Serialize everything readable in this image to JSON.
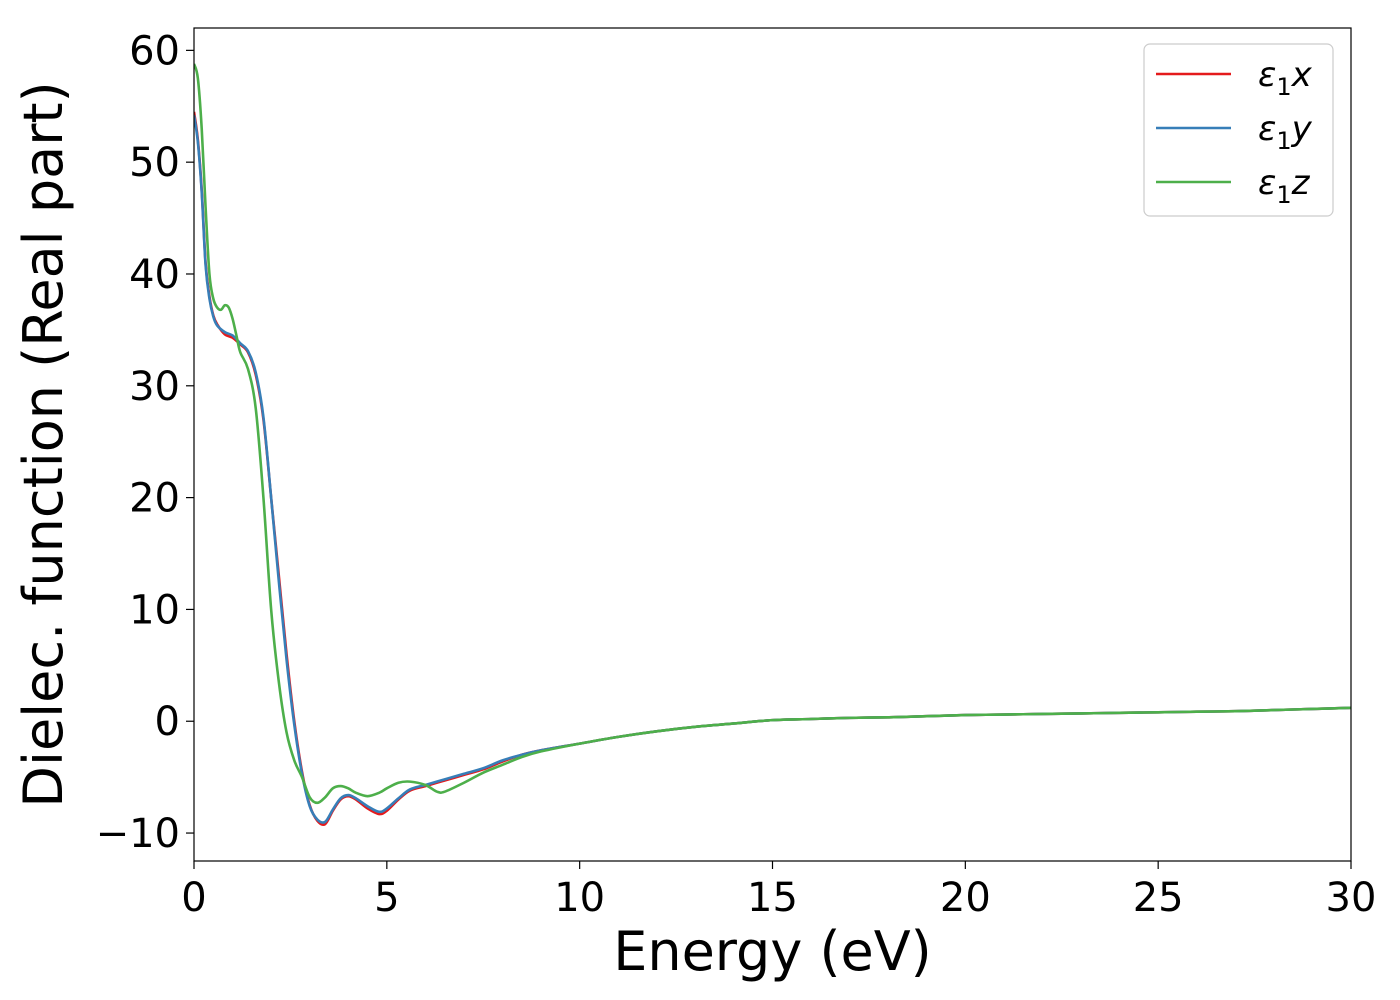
{
  "chart_data": {
    "type": "line",
    "title": "",
    "xlabel": "Energy (eV)",
    "ylabel": "Dielec. function (Real part)",
    "xlim": [
      0,
      30
    ],
    "ylim": [
      -12.5,
      62
    ],
    "xticks": [
      0,
      5,
      10,
      15,
      20,
      25,
      30
    ],
    "xtick_labels": [
      "0",
      "5",
      "10",
      "15",
      "20",
      "25",
      "30"
    ],
    "yticks": [
      -10,
      0,
      10,
      20,
      30,
      40,
      50,
      60
    ],
    "ytick_labels": [
      "−10",
      "0",
      "10",
      "20",
      "30",
      "40",
      "50",
      "60"
    ],
    "grid": false,
    "legend_position": "top-right",
    "series": [
      {
        "name": "ε₁x",
        "legend_main": "ε",
        "legend_sub": "1",
        "legend_var": "x",
        "color": "#e41a1c",
        "x": [
          0,
          0.1,
          0.2,
          0.3,
          0.4,
          0.5,
          0.6,
          0.8,
          1.0,
          1.2,
          1.4,
          1.6,
          1.8,
          2.0,
          2.2,
          2.4,
          2.6,
          2.8,
          3.0,
          3.2,
          3.4,
          3.6,
          3.8,
          4.0,
          4.2,
          4.5,
          4.8,
          5.0,
          5.3,
          5.6,
          6.0,
          6.5,
          7.0,
          7.5,
          8.0,
          8.5,
          9.0,
          10.0,
          11.0,
          12.0,
          13.0,
          14.0,
          15.0,
          16.0,
          17.0,
          18.0,
          19.0,
          20.0,
          21.0,
          22.0,
          23.0,
          24.0,
          25.0,
          26.0,
          27.0,
          28.0,
          29.0,
          30.0
        ],
        "y": [
          54.5,
          52.0,
          47.5,
          41.0,
          38.0,
          36.3,
          35.5,
          34.6,
          34.3,
          33.7,
          33.0,
          31.0,
          27.0,
          20.0,
          13.0,
          6.0,
          0.0,
          -4.5,
          -7.5,
          -8.9,
          -9.2,
          -8.0,
          -7.0,
          -6.7,
          -7.0,
          -7.8,
          -8.3,
          -8.0,
          -7.0,
          -6.2,
          -5.8,
          -5.3,
          -4.8,
          -4.3,
          -3.6,
          -3.0,
          -2.6,
          -2.0,
          -1.4,
          -0.9,
          -0.5,
          -0.2,
          0.1,
          0.2,
          0.3,
          0.35,
          0.45,
          0.55,
          0.6,
          0.65,
          0.7,
          0.75,
          0.8,
          0.85,
          0.9,
          1.0,
          1.1,
          1.2
        ]
      },
      {
        "name": "ε₁y",
        "legend_main": "ε",
        "legend_sub": "1",
        "legend_var": "y",
        "color": "#377eb8",
        "x": [
          0,
          0.1,
          0.2,
          0.3,
          0.4,
          0.5,
          0.6,
          0.8,
          1.0,
          1.2,
          1.4,
          1.6,
          1.8,
          2.0,
          2.2,
          2.4,
          2.6,
          2.8,
          3.0,
          3.2,
          3.4,
          3.6,
          3.8,
          4.0,
          4.2,
          4.5,
          4.8,
          5.0,
          5.3,
          5.6,
          6.0,
          6.5,
          7.0,
          7.5,
          8.0,
          8.5,
          9.0,
          10.0,
          11.0,
          12.0,
          13.0,
          14.0,
          15.0,
          16.0,
          17.0,
          18.0,
          19.0,
          20.0,
          21.0,
          22.0,
          23.0,
          24.0,
          25.0,
          26.0,
          27.0,
          28.0,
          29.0,
          30.0
        ],
        "y": [
          54.2,
          51.8,
          47.3,
          40.8,
          37.8,
          36.2,
          35.4,
          34.8,
          34.5,
          33.8,
          33.1,
          31.2,
          27.2,
          20.0,
          12.5,
          5.5,
          -0.3,
          -4.7,
          -7.6,
          -8.8,
          -9.0,
          -7.9,
          -6.9,
          -6.6,
          -6.9,
          -7.6,
          -8.1,
          -7.8,
          -6.9,
          -6.1,
          -5.7,
          -5.2,
          -4.7,
          -4.2,
          -3.5,
          -3.0,
          -2.6,
          -2.0,
          -1.4,
          -0.9,
          -0.5,
          -0.2,
          0.1,
          0.2,
          0.3,
          0.35,
          0.45,
          0.55,
          0.6,
          0.65,
          0.7,
          0.75,
          0.8,
          0.85,
          0.9,
          1.0,
          1.1,
          1.2
        ]
      },
      {
        "name": "ε₁z",
        "legend_main": "ε",
        "legend_sub": "1",
        "legend_var": "z",
        "color": "#4daf4a",
        "x": [
          0,
          0.1,
          0.2,
          0.3,
          0.4,
          0.5,
          0.6,
          0.7,
          0.8,
          0.9,
          1.0,
          1.1,
          1.2,
          1.4,
          1.6,
          1.8,
          2.0,
          2.2,
          2.4,
          2.6,
          2.8,
          3.0,
          3.2,
          3.4,
          3.6,
          3.8,
          4.0,
          4.2,
          4.5,
          4.8,
          5.0,
          5.3,
          5.6,
          6.0,
          6.3,
          6.5,
          7.0,
          7.5,
          8.0,
          8.5,
          9.0,
          10.0,
          11.0,
          12.0,
          13.0,
          14.0,
          15.0,
          16.0,
          17.0,
          18.0,
          19.0,
          20.0,
          21.0,
          22.0,
          23.0,
          24.0,
          25.0,
          26.0,
          27.0,
          28.0,
          29.0,
          30.0
        ],
        "y": [
          58.8,
          57.5,
          53.0,
          46.0,
          40.0,
          37.8,
          37.0,
          36.8,
          37.2,
          37.0,
          36.0,
          34.5,
          33.0,
          31.5,
          28.0,
          20.0,
          10.0,
          3.5,
          -1.0,
          -3.5,
          -5.0,
          -6.8,
          -7.3,
          -6.8,
          -6.0,
          -5.8,
          -6.0,
          -6.4,
          -6.7,
          -6.4,
          -6.0,
          -5.5,
          -5.4,
          -5.7,
          -6.3,
          -6.3,
          -5.5,
          -4.6,
          -3.9,
          -3.2,
          -2.7,
          -2.0,
          -1.4,
          -0.9,
          -0.5,
          -0.2,
          0.1,
          0.2,
          0.3,
          0.35,
          0.45,
          0.55,
          0.6,
          0.65,
          0.7,
          0.75,
          0.8,
          0.85,
          0.9,
          1.0,
          1.1,
          1.2
        ]
      }
    ]
  }
}
